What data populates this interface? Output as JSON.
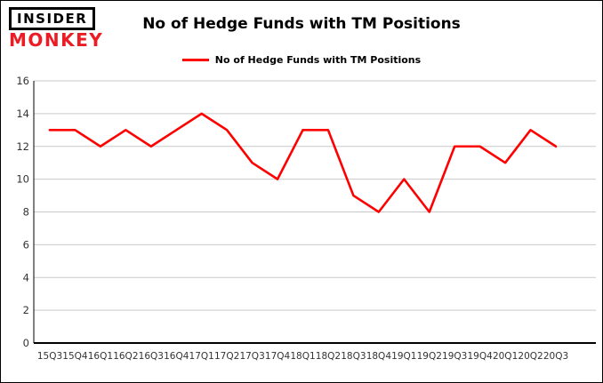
{
  "logo": {
    "line1": "INSIDER",
    "line2": "MONKEY"
  },
  "header": {
    "title": "No of Hedge Funds with TM Positions"
  },
  "legend": {
    "label": "No of Hedge Funds with TM Positions"
  },
  "chart_data": {
    "type": "line",
    "title": "No of Hedge Funds with TM Positions",
    "categories": [
      "15Q3",
      "15Q4",
      "16Q1",
      "16Q2",
      "16Q3",
      "16Q4",
      "17Q1",
      "17Q2",
      "17Q3",
      "17Q4",
      "18Q1",
      "18Q2",
      "18Q3",
      "18Q4",
      "19Q1",
      "19Q2",
      "19Q3",
      "19Q4",
      "20Q1",
      "20Q2",
      "20Q3"
    ],
    "series": [
      {
        "name": "No of Hedge Funds with TM Positions",
        "values": [
          13,
          13,
          12,
          13,
          12,
          13,
          14,
          13,
          11,
          10,
          13,
          13,
          9,
          8,
          10,
          8,
          12,
          12,
          11,
          13,
          12
        ]
      }
    ],
    "xlabel": "",
    "ylabel": "",
    "ylim": [
      0,
      16
    ],
    "yticks": [
      0,
      2,
      4,
      6,
      8,
      10,
      12,
      14,
      16
    ],
    "grid": true,
    "legend_position": "top"
  },
  "colors": {
    "accent": "#ff0000",
    "grid": "#c9c9c9",
    "axis": "#000000",
    "tick_text": "#333333",
    "logo_red": "#ed1b24"
  }
}
